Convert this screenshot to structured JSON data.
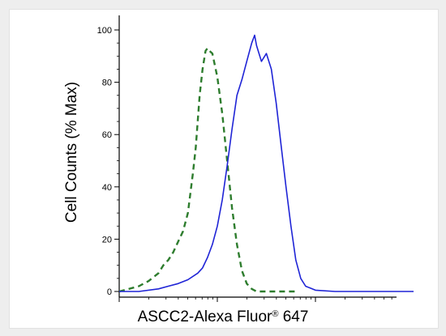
{
  "chart_data": {
    "type": "line",
    "xlabel_main": "ASCC2-Alexa Fluor",
    "xlabel_mark": "®",
    "xlabel_tail": " 647",
    "ylabel": "Cell Counts (% Max)",
    "xscale": "log",
    "ylim": [
      0,
      100
    ],
    "y_ticks": [
      0,
      20,
      40,
      60,
      80,
      100
    ],
    "grid": false,
    "series": [
      {
        "style": "dashed",
        "color": "#2e7d2e",
        "x": [
          0.0,
          0.1,
          0.2,
          0.3,
          0.4,
          0.45,
          0.5,
          0.55,
          0.6,
          0.65,
          0.7,
          0.75,
          0.78,
          0.8,
          0.82,
          0.85,
          0.88,
          0.9,
          0.92,
          0.95,
          1.0,
          1.05,
          1.1,
          1.15,
          1.2,
          1.25,
          1.3,
          1.35,
          1.4,
          1.45,
          1.5,
          1.55,
          1.6,
          1.7,
          1.8
        ],
        "y": [
          0.0,
          1.0,
          2.0,
          4.0,
          7.0,
          10.0,
          12.0,
          15.0,
          19.0,
          23.0,
          30.0,
          45.0,
          55.0,
          65.0,
          75.0,
          85.0,
          92.0,
          93.0,
          92.0,
          91.0,
          82.0,
          68.0,
          50.0,
          32.0,
          18.0,
          8.0,
          3.0,
          1.0,
          0.0,
          0.0,
          0.0,
          0.0,
          0.0,
          0.0,
          0.0
        ]
      },
      {
        "style": "solid",
        "color": "#1f24d6",
        "x": [
          0.0,
          0.2,
          0.4,
          0.5,
          0.6,
          0.7,
          0.8,
          0.85,
          0.9,
          0.95,
          1.0,
          1.05,
          1.1,
          1.15,
          1.2,
          1.25,
          1.3,
          1.35,
          1.38,
          1.4,
          1.45,
          1.5,
          1.55,
          1.6,
          1.65,
          1.7,
          1.75,
          1.8,
          1.85,
          1.9,
          2.0,
          2.2,
          2.5,
          3.0
        ],
        "y": [
          0.0,
          0.0,
          1.0,
          2.0,
          3.0,
          4.5,
          7.0,
          9.0,
          13.0,
          18.0,
          25.0,
          35.0,
          48.0,
          62.0,
          75.0,
          81.0,
          88.0,
          95.0,
          98.0,
          94.0,
          88.0,
          91.0,
          85.0,
          72.0,
          56.0,
          40.0,
          25.0,
          12.0,
          5.0,
          2.0,
          0.5,
          0.0,
          0.0,
          0.0
        ]
      }
    ]
  }
}
